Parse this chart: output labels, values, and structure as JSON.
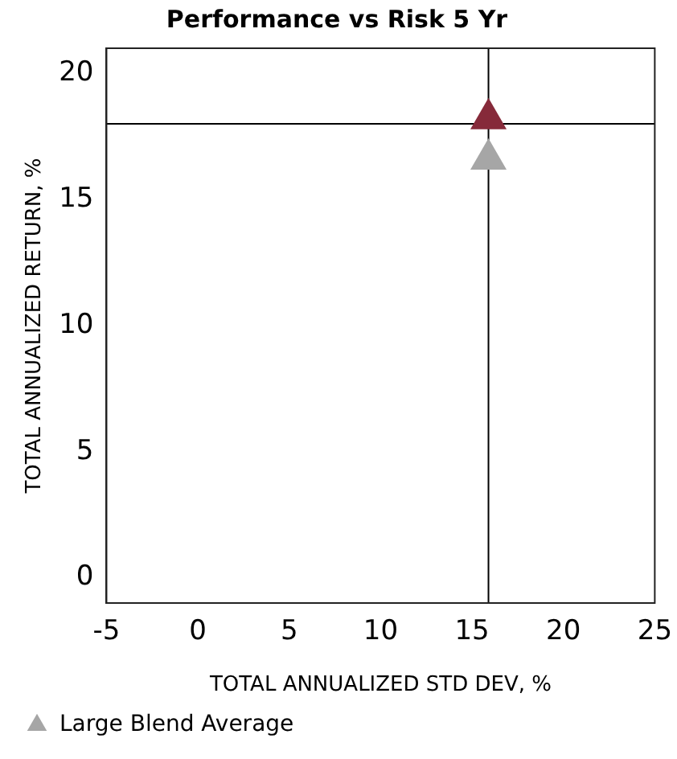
{
  "chart_data": {
    "type": "scatter",
    "title": "Performance vs Risk 5 Yr",
    "xlabel": "TOTAL ANNUALIZED STD DEV, %",
    "ylabel": "TOTAL ANNUALIZED RETURN, %",
    "series": [
      {
        "name": "Large Blend Average",
        "color": "#a6a6a6",
        "x": [
          15.9
        ],
        "values": [
          16.6
        ]
      },
      {
        "color": "#862a3a",
        "x": [
          15.9
        ],
        "values": [
          18.2
        ]
      }
    ],
    "xlim": [
      -5,
      25
    ],
    "xticks": [
      -5,
      0,
      5,
      10,
      15,
      20,
      25
    ],
    "ylim": [
      -1,
      21
    ],
    "yticks": [
      0,
      5,
      10,
      15,
      20
    ],
    "ref_lines": [
      {
        "axis": "x",
        "value": 15.9,
        "color": "#000000"
      },
      {
        "axis": "y",
        "value": 18.0,
        "color": "#000000"
      }
    ],
    "grid": false,
    "legend": "bottom left",
    "marker": "triangle"
  }
}
